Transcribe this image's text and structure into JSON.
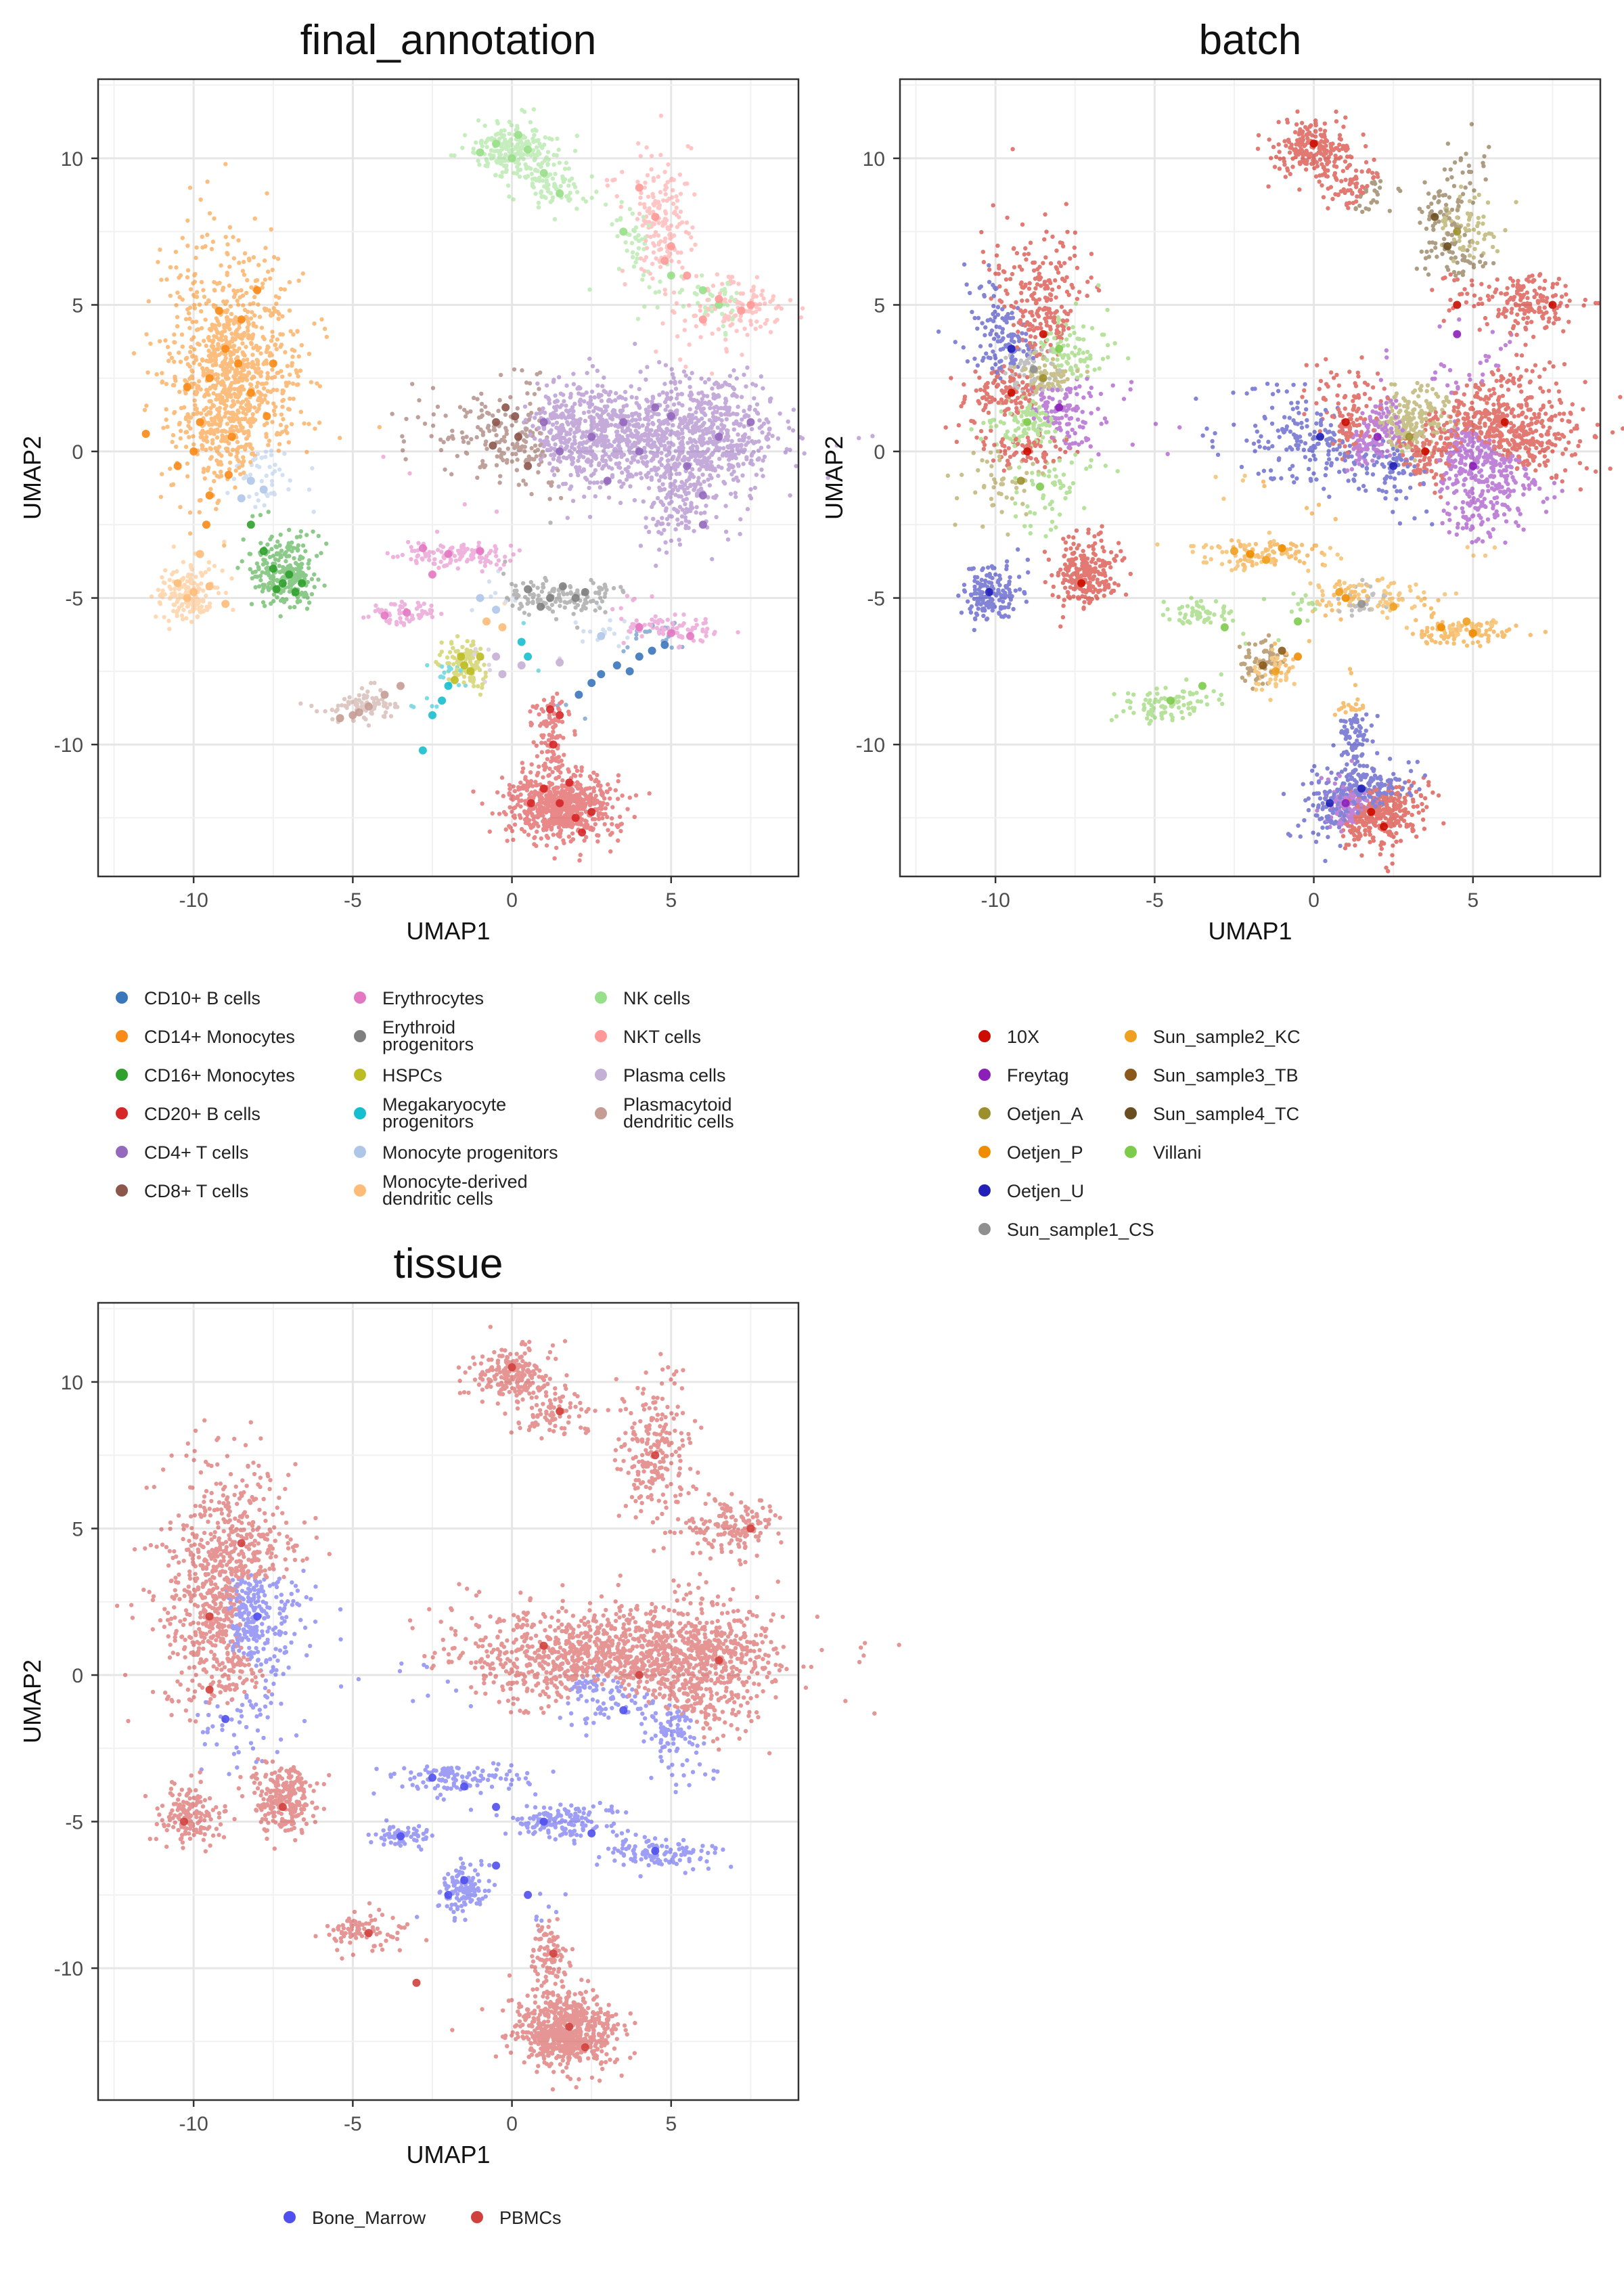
{
  "chart_data": [
    {
      "type": "scatter",
      "title": "final_annotation",
      "xlabel": "UMAP1",
      "ylabel": "UMAP2",
      "xlim": [
        -13,
        9
      ],
      "ylim": [
        -14.5,
        12.7
      ],
      "x_ticks": [
        -10,
        -5,
        0,
        5
      ],
      "y_ticks": [
        10,
        5,
        0,
        -5,
        -10
      ],
      "grid": true,
      "legend_position": "bottom",
      "series": [
        {
          "name": "CD10+ B cells",
          "color": "#3A76BA",
          "points": [
            [
              3.3,
              -7.3
            ],
            [
              4.0,
              -7.0
            ],
            [
              2.5,
              -7.9
            ],
            [
              4.8,
              -6.6
            ],
            [
              2.1,
              -8.3
            ],
            [
              3.7,
              -7.5
            ],
            [
              2.8,
              -7.6
            ],
            [
              4.4,
              -6.8
            ]
          ]
        },
        {
          "name": "CD14+ Monocytes",
          "color": "#F98A17",
          "points": [
            [
              -9.5,
              2.5
            ],
            [
              -9.0,
              3.5
            ],
            [
              -8.5,
              4.5
            ],
            [
              -8.0,
              5.5
            ],
            [
              -9.8,
              1.0
            ],
            [
              -10.0,
              0.0
            ],
            [
              -9.5,
              -1.5
            ],
            [
              -8.8,
              0.5
            ],
            [
              -8.2,
              2.0
            ],
            [
              -7.5,
              3.0
            ],
            [
              -9.2,
              4.8
            ],
            [
              -10.2,
              2.2
            ],
            [
              -8.9,
              -0.8
            ],
            [
              -7.7,
              1.2
            ],
            [
              -10.5,
              -0.5
            ],
            [
              -9.6,
              -2.5
            ],
            [
              -8.6,
              3.0
            ],
            [
              -11.5,
              0.6
            ]
          ]
        },
        {
          "name": "CD16+ Monocytes",
          "color": "#2FA02C",
          "points": [
            [
              -7.2,
              -4.5
            ],
            [
              -6.8,
              -4.8
            ],
            [
              -7.5,
              -4.0
            ],
            [
              -7.8,
              -3.4
            ],
            [
              -7.0,
              -4.2
            ],
            [
              -8.2,
              -2.5
            ],
            [
              -6.6,
              -4.5
            ],
            [
              -7.4,
              -4.7
            ]
          ]
        },
        {
          "name": "CD20+ B cells",
          "color": "#D62728",
          "points": [
            [
              1.5,
              -12.0
            ],
            [
              2.0,
              -12.5
            ],
            [
              1.0,
              -11.5
            ],
            [
              2.5,
              -12.3
            ],
            [
              0.6,
              -12.0
            ],
            [
              1.8,
              -11.3
            ],
            [
              1.3,
              -10.0
            ],
            [
              1.5,
              -9.0
            ],
            [
              1.2,
              -8.8
            ],
            [
              2.2,
              -13.0
            ]
          ]
        },
        {
          "name": "CD4+ T cells",
          "color": "#9468BD",
          "points": [
            [
              1.0,
              1.0
            ],
            [
              2.5,
              0.5
            ],
            [
              4.0,
              0.0
            ],
            [
              5.5,
              -0.5
            ],
            [
              6.5,
              0.5
            ],
            [
              7.5,
              1.0
            ],
            [
              3.0,
              -1.0
            ],
            [
              1.5,
              0.0
            ],
            [
              5.0,
              1.2
            ],
            [
              6.0,
              -1.5
            ],
            [
              6.0,
              -2.5
            ],
            [
              4.5,
              1.5
            ],
            [
              3.5,
              1.0
            ]
          ]
        },
        {
          "name": "CD8+ T cells",
          "color": "#8C564B",
          "points": [
            [
              -0.5,
              1.0
            ],
            [
              0.2,
              0.5
            ],
            [
              -0.2,
              1.5
            ],
            [
              0.5,
              -0.5
            ],
            [
              -0.6,
              0.2
            ],
            [
              0.1,
              1.2
            ]
          ]
        },
        {
          "name": "Erythrocytes",
          "color": "#E377C2",
          "points": [
            [
              -2.8,
              -3.3
            ],
            [
              -2.0,
              -3.5
            ],
            [
              -1.0,
              -3.4
            ],
            [
              -3.3,
              -5.5
            ],
            [
              -4.0,
              -5.6
            ],
            [
              -2.5,
              -4.2
            ],
            [
              4.0,
              -6.0
            ],
            [
              5.0,
              -6.2
            ],
            [
              5.6,
              -6.3
            ]
          ]
        },
        {
          "name": "Erythroid progenitors",
          "color": "#7F7F7F",
          "points": [
            [
              0.5,
              -4.7
            ],
            [
              1.2,
              -5.0
            ],
            [
              2.0,
              -5.0
            ],
            [
              1.6,
              -4.6
            ],
            [
              2.3,
              -4.8
            ],
            [
              0.9,
              -5.3
            ]
          ]
        },
        {
          "name": "HSPCs",
          "color": "#BCBD22",
          "points": [
            [
              -1.5,
              -7.3
            ],
            [
              -1.0,
              -7.0
            ],
            [
              -1.8,
              -7.8
            ],
            [
              -1.3,
              -7.5
            ],
            [
              -1.6,
              -7.0
            ]
          ]
        },
        {
          "name": "Megakaryocyte progenitors",
          "color": "#17BECF",
          "points": [
            [
              -2.0,
              -8.0
            ],
            [
              -2.5,
              -9.0
            ],
            [
              -2.8,
              -10.2
            ],
            [
              0.3,
              -6.5
            ],
            [
              0.5,
              -7.0
            ],
            [
              -2.2,
              -8.5
            ]
          ]
        },
        {
          "name": "Monocyte progenitors",
          "color": "#AEC7E8",
          "points": [
            [
              -8.2,
              -1.0
            ],
            [
              -7.8,
              -1.3
            ],
            [
              -8.5,
              -1.6
            ],
            [
              -1.0,
              -5.0
            ],
            [
              -0.5,
              -5.4
            ],
            [
              2.8,
              -6.3
            ]
          ]
        },
        {
          "name": "Monocyte-derived dendritic cells",
          "color": "#FFBB78",
          "points": [
            [
              -10.5,
              -4.5
            ],
            [
              -10.0,
              -4.8
            ],
            [
              -9.5,
              -4.6
            ],
            [
              -10.2,
              -5.0
            ],
            [
              -9.0,
              -5.2
            ],
            [
              -0.8,
              -5.8
            ],
            [
              -0.3,
              -6.0
            ],
            [
              -9.8,
              -3.5
            ]
          ]
        },
        {
          "name": "NK cells",
          "color": "#98DF8A",
          "points": [
            [
              -0.5,
              10.5
            ],
            [
              0.0,
              10.0
            ],
            [
              0.5,
              10.3
            ],
            [
              -1.0,
              10.2
            ],
            [
              1.0,
              9.5
            ],
            [
              1.5,
              8.8
            ],
            [
              0.2,
              10.8
            ],
            [
              6.0,
              5.5
            ],
            [
              6.5,
              5.0
            ],
            [
              5.0,
              6.0
            ],
            [
              3.5,
              7.5
            ]
          ]
        },
        {
          "name": "NKT cells",
          "color": "#FF9896",
          "points": [
            [
              4.0,
              9.0
            ],
            [
              4.5,
              8.0
            ],
            [
              5.0,
              7.0
            ],
            [
              5.5,
              6.0
            ],
            [
              6.5,
              5.2
            ],
            [
              7.5,
              5.0
            ],
            [
              4.8,
              6.5
            ],
            [
              6.0,
              4.5
            ],
            [
              7.2,
              4.8
            ]
          ]
        },
        {
          "name": "Plasma cells",
          "color": "#C5B0D5",
          "points": [
            [
              -0.5,
              -7.0
            ],
            [
              0.3,
              -7.3
            ],
            [
              1.5,
              -7.2
            ],
            [
              -0.3,
              -7.6
            ]
          ]
        },
        {
          "name": "Plasmacytoid dendritic cells",
          "color": "#C49C94",
          "points": [
            [
              -5.0,
              -9.0
            ],
            [
              -4.5,
              -8.7
            ],
            [
              -4.0,
              -8.3
            ],
            [
              -3.5,
              -8.0
            ],
            [
              -5.4,
              -9.1
            ],
            [
              -4.8,
              -8.9
            ]
          ]
        }
      ]
    },
    {
      "type": "scatter",
      "title": "batch",
      "xlabel": "UMAP1",
      "ylabel": "UMAP2",
      "xlim": [
        -13,
        9
      ],
      "ylim": [
        -14.5,
        12.7
      ],
      "x_ticks": [
        -10,
        -5,
        0,
        5
      ],
      "y_ticks": [
        10,
        5,
        0,
        -5,
        -10
      ],
      "grid": true,
      "legend_position": "bottom",
      "series": [
        {
          "name": "10X",
          "color": "#CC0C00",
          "points": [
            [
              -9.5,
              2.0
            ],
            [
              -8.5,
              4.0
            ],
            [
              -9.0,
              0.0
            ],
            [
              1.0,
              1.0
            ],
            [
              3.5,
              0.0
            ],
            [
              6.0,
              1.0
            ],
            [
              7.5,
              5.0
            ],
            [
              0.0,
              10.5
            ],
            [
              1.8,
              -12.3
            ],
            [
              2.2,
              -12.8
            ],
            [
              -7.3,
              -4.5
            ],
            [
              4.5,
              5.0
            ]
          ]
        },
        {
          "name": "Freytag",
          "color": "#8C1FB8",
          "points": [
            [
              2.0,
              0.5
            ],
            [
              5.0,
              -0.5
            ],
            [
              -8.0,
              1.5
            ],
            [
              1.0,
              -12.0
            ],
            [
              4.5,
              4.0
            ]
          ]
        },
        {
          "name": "Oetjen_A",
          "color": "#9C8F2D",
          "points": [
            [
              -8.5,
              2.5
            ],
            [
              3.0,
              0.5
            ],
            [
              4.5,
              7.5
            ],
            [
              -9.2,
              -1.0
            ]
          ]
        },
        {
          "name": "Oetjen_P",
          "color": "#F08C00",
          "points": [
            [
              -2.0,
              -3.5
            ],
            [
              -1.0,
              -3.3
            ],
            [
              1.0,
              -5.0
            ],
            [
              4.0,
              -6.0
            ],
            [
              -0.5,
              -7.0
            ],
            [
              5.0,
              -6.2
            ]
          ]
        },
        {
          "name": "Oetjen_U",
          "color": "#2121B8",
          "points": [
            [
              0.5,
              -12.0
            ],
            [
              1.5,
              -11.5
            ],
            [
              -9.5,
              3.5
            ],
            [
              2.5,
              -0.5
            ],
            [
              -10.2,
              -4.8
            ],
            [
              0.2,
              0.5
            ]
          ]
        },
        {
          "name": "Sun_sample1_CS",
          "color": "#8F8F8F",
          "points": [
            [
              -8.8,
              2.8
            ],
            [
              1.5,
              -5.2
            ]
          ]
        },
        {
          "name": "Sun_sample2_KC",
          "color": "#F0A020",
          "points": [
            [
              -2.5,
              -3.4
            ],
            [
              -1.5,
              -3.7
            ],
            [
              0.8,
              -4.8
            ],
            [
              2.5,
              -5.3
            ],
            [
              4.8,
              -5.8
            ],
            [
              -1.2,
              -7.5
            ]
          ]
        },
        {
          "name": "Sun_sample3_TB",
          "color": "#8B5A1A",
          "points": [
            [
              -1.6,
              -7.3
            ],
            [
              -1.0,
              -6.8
            ]
          ]
        },
        {
          "name": "Sun_sample4_TC",
          "color": "#6B4E1F",
          "points": [
            [
              3.8,
              8.0
            ],
            [
              4.2,
              7.0
            ]
          ]
        },
        {
          "name": "Villani",
          "color": "#7CCB4A",
          "points": [
            [
              -9.0,
              1.0
            ],
            [
              -8.0,
              3.5
            ],
            [
              -3.5,
              -8.0
            ],
            [
              -4.5,
              -8.5
            ],
            [
              -0.5,
              -5.8
            ],
            [
              -2.8,
              -6.0
            ],
            [
              -8.6,
              -1.2
            ]
          ]
        }
      ]
    },
    {
      "type": "scatter",
      "title": "tissue",
      "xlabel": "UMAP1",
      "ylabel": "UMAP2",
      "xlim": [
        -13,
        9
      ],
      "ylim": [
        -14.5,
        12.7
      ],
      "x_ticks": [
        -10,
        -5,
        0,
        5
      ],
      "y_ticks": [
        10,
        5,
        0,
        -5,
        -10
      ],
      "grid": true,
      "legend_position": "bottom",
      "series": [
        {
          "name": "Bone_Marrow",
          "color": "#5050EE",
          "points": [
            [
              -2.5,
              -3.5
            ],
            [
              -1.5,
              -3.8
            ],
            [
              -0.5,
              -4.5
            ],
            [
              1.0,
              -5.0
            ],
            [
              2.5,
              -5.4
            ],
            [
              4.5,
              -6.0
            ],
            [
              -1.5,
              -7.0
            ],
            [
              -2.0,
              -7.5
            ],
            [
              -3.5,
              -5.5
            ],
            [
              -0.5,
              -6.5
            ],
            [
              -9.0,
              -1.5
            ],
            [
              3.5,
              -1.2
            ],
            [
              -8.0,
              2.0
            ],
            [
              0.5,
              -7.5
            ]
          ]
        },
        {
          "name": "PBMCs",
          "color": "#D0413E",
          "points": [
            [
              -9.5,
              2.0
            ],
            [
              -8.5,
              4.5
            ],
            [
              -9.5,
              -0.5
            ],
            [
              -10.3,
              -5.0
            ],
            [
              -7.2,
              -4.5
            ],
            [
              0.0,
              10.5
            ],
            [
              1.5,
              9.0
            ],
            [
              4.5,
              7.5
            ],
            [
              7.5,
              5.0
            ],
            [
              1.0,
              1.0
            ],
            [
              4.0,
              0.0
            ],
            [
              6.5,
              0.5
            ],
            [
              1.8,
              -12.0
            ],
            [
              2.3,
              -12.7
            ],
            [
              1.3,
              -9.5
            ],
            [
              -4.5,
              -8.8
            ],
            [
              -3.0,
              -10.5
            ]
          ]
        }
      ]
    }
  ]
}
